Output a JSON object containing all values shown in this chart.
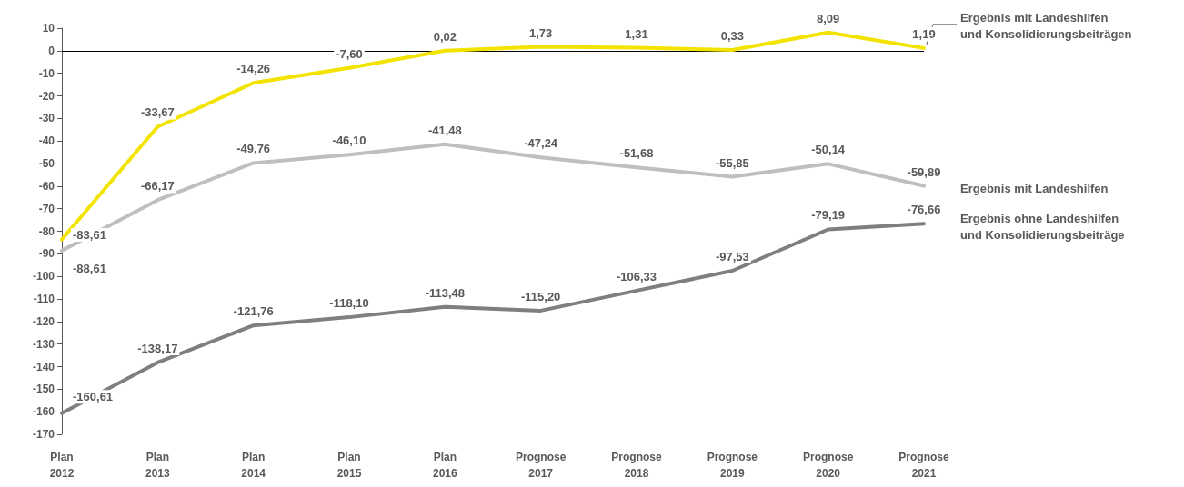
{
  "chart_data": {
    "type": "line",
    "categories": [
      "Plan\n2012",
      "Plan\n2013",
      "Plan\n2014",
      "Plan\n2015",
      "Plan\n2016",
      "Prognose\n2017",
      "Prognose\n2018",
      "Prognose\n2019",
      "Prognose\n2020",
      "Prognose\n2021"
    ],
    "ylim": [
      -170,
      10
    ],
    "yticks": [
      -170,
      -160,
      -150,
      -140,
      -130,
      -120,
      -110,
      -100,
      -90,
      -80,
      -70,
      -60,
      -50,
      -40,
      -30,
      -20,
      -10,
      0,
      10
    ],
    "series": [
      {
        "name": "Ergebnis mit Landeshilfen\nund Konsolidierungsbeiträgen",
        "color": "#f2e400",
        "values": [
          -83.61,
          -33.67,
          -14.26,
          -7.6,
          0.02,
          1.73,
          1.31,
          0.33,
          8.09,
          1.19
        ],
        "value_labels": [
          "-83,61",
          "-33,67",
          "-14,26",
          "-7,60",
          "0,02",
          "1,73",
          "1,31",
          "0,33",
          "8,09",
          "1,19"
        ]
      },
      {
        "name": "Ergebnis mit Landeshilfen",
        "color": "#bfbfbf",
        "values": [
          -88.61,
          -66.17,
          -49.76,
          -46.1,
          -41.48,
          -47.24,
          -51.68,
          -55.85,
          -50.14,
          -59.89
        ],
        "value_labels": [
          "-88,61",
          "-66,17",
          "-49,76",
          "-46,10",
          "-41,48",
          "-47,24",
          "-51,68",
          "-55,85",
          "-50,14",
          "-59,89"
        ]
      },
      {
        "name": "Ergebnis ohne Landeshilfen\nund Konsolidierungsbeiträge",
        "color": "#7f7f7f",
        "values": [
          -160.61,
          -138.17,
          -121.76,
          -118.1,
          -113.48,
          -115.2,
          -106.33,
          -97.53,
          -79.19,
          -76.66
        ],
        "value_labels": [
          "-160,61",
          "-138,17",
          "-121,76",
          "-118,10",
          "-113,48",
          "-115,20",
          "-106,33",
          "-97,53",
          "-79,19",
          "-76,66"
        ]
      }
    ],
    "ref_lines": [
      {
        "axis": "y",
        "value": 0,
        "color": "#000000"
      }
    ],
    "marker": "none",
    "line_style": "solid"
  }
}
